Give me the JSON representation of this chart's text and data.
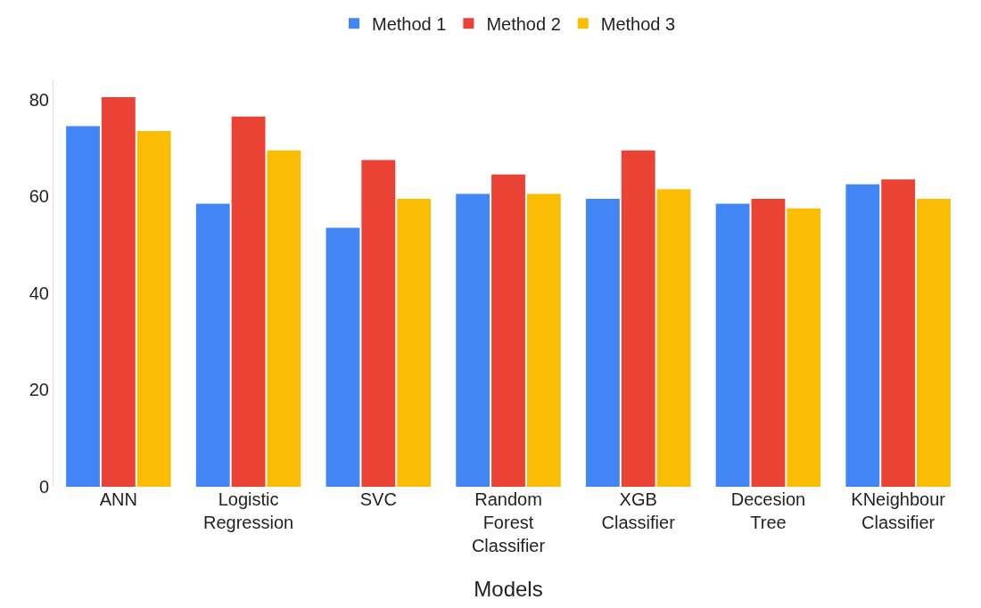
{
  "chart_data": {
    "type": "bar",
    "xlabel": "Models",
    "categories": [
      "ANN",
      "Logistic\nRegression",
      "SVC",
      "Random\nForest\nClassifier",
      "XGB\nClassifier",
      "Decesion\nTree",
      "KNeighbour\nClassifier"
    ],
    "series": [
      {
        "name": "Method 1",
        "color": "#4285f4",
        "values": [
          74.5,
          58.5,
          53.5,
          60.5,
          59.5,
          58.5,
          62.5
        ]
      },
      {
        "name": "Method 2",
        "color": "#ea4335",
        "values": [
          80.5,
          76.5,
          67.5,
          64.5,
          69.5,
          59.5,
          63.5
        ]
      },
      {
        "name": "Method 3",
        "color": "#fbbc04",
        "values": [
          73.5,
          69.5,
          59.5,
          60.5,
          61.5,
          57.5,
          59.5
        ]
      }
    ],
    "ylim": [
      0,
      84
    ],
    "yticks": [
      0,
      20,
      40,
      60,
      80
    ],
    "legend": "top"
  }
}
